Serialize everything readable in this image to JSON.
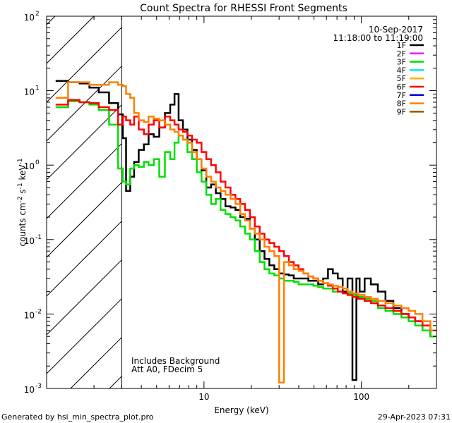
{
  "chart_data": {
    "type": "line",
    "title": "Count Spectra for RHESSI Front Segments",
    "xlabel": "Energy (keV)",
    "ylabel_parts": [
      "counts cm",
      "-2",
      " s",
      "-1",
      " keV",
      "-1"
    ],
    "xscale": "log",
    "yscale": "log",
    "xlim": [
      1.0,
      300.0
    ],
    "ylim": [
      0.001,
      100.0
    ],
    "x_ticks": [
      {
        "value": 10,
        "label": "10"
      },
      {
        "value": 100,
        "label": "100"
      }
    ],
    "y_ticks": [
      {
        "value": 0.001,
        "base": "10",
        "exp": "-3"
      },
      {
        "value": 0.01,
        "base": "10",
        "exp": "-2"
      },
      {
        "value": 0.1,
        "base": "10",
        "exp": "-1"
      },
      {
        "value": 1,
        "base": "10",
        "exp": "0"
      },
      {
        "value": 10,
        "base": "10",
        "exp": "1"
      },
      {
        "value": 100,
        "base": "10",
        "exp": "2"
      }
    ],
    "grid": false,
    "date": "10-Sep-2017",
    "time_range": "11:18:00 to 11:19:00",
    "annotations": [
      "Includes Background",
      "Att A0, FDecim 5"
    ],
    "shaded_region": {
      "x_min": 1.0,
      "x_max": 3.0,
      "pattern": "diagonal hatch"
    },
    "legend_position": "top-right",
    "legend": [
      {
        "label": "1F",
        "color": "#000000"
      },
      {
        "label": "2F",
        "color": "#ff00ff"
      },
      {
        "label": "3F",
        "color": "#00e000"
      },
      {
        "label": "4F",
        "color": "#00e5ff"
      },
      {
        "label": "5F",
        "color": "#ffb000"
      },
      {
        "label": "6F",
        "color": "#ff0000"
      },
      {
        "label": "7F",
        "color": "#0000e0"
      },
      {
        "label": "8F",
        "color": "#ff8000"
      },
      {
        "label": "9F",
        "color": "#806000"
      }
    ],
    "series": [
      {
        "color": "#000000",
        "width": 2.5,
        "points": [
          [
            1.25,
            13.5
          ],
          [
            1.5,
            13.0
          ],
          [
            1.75,
            12.5
          ],
          [
            2.0,
            11.0
          ],
          [
            2.3,
            9.5
          ],
          [
            2.7,
            6.8
          ],
          [
            3.0,
            4.8
          ],
          [
            3.1,
            2.3
          ],
          [
            3.3,
            0.45
          ],
          [
            3.5,
            0.7
          ],
          [
            3.7,
            1.1
          ],
          [
            4.0,
            1.6
          ],
          [
            4.3,
            1.9
          ],
          [
            4.6,
            2.6
          ],
          [
            5.0,
            2.4
          ],
          [
            5.4,
            3.2
          ],
          [
            5.9,
            5.0
          ],
          [
            6.3,
            6.5
          ],
          [
            6.7,
            9.0
          ],
          [
            7.1,
            4.0
          ],
          [
            7.6,
            3.0
          ],
          [
            8.1,
            2.2
          ],
          [
            8.7,
            1.6
          ],
          [
            9.3,
            1.2
          ],
          [
            10.0,
            0.85
          ],
          [
            10.7,
            0.5
          ],
          [
            11.5,
            0.55
          ],
          [
            12.3,
            0.42
          ],
          [
            13.2,
            0.35
          ],
          [
            14.2,
            0.28
          ],
          [
            15.3,
            0.27
          ],
          [
            16.4,
            0.25
          ],
          [
            17.6,
            0.2
          ],
          [
            18.9,
            0.19
          ],
          [
            20.3,
            0.14
          ],
          [
            21.8,
            0.1
          ],
          [
            23.4,
            0.07
          ],
          [
            25.1,
            0.055
          ],
          [
            27.0,
            0.045
          ],
          [
            29.0,
            0.04
          ],
          [
            31.1,
            0.035
          ],
          [
            33.4,
            0.034
          ],
          [
            35.9,
            0.033
          ],
          [
            38.5,
            0.03
          ],
          [
            41.4,
            0.03
          ],
          [
            44.4,
            0.03
          ],
          [
            47.7,
            0.028
          ],
          [
            51.3,
            0.028
          ],
          [
            55.1,
            0.025
          ],
          [
            59.2,
            0.03
          ],
          [
            63.6,
            0.04
          ],
          [
            68.3,
            0.035
          ],
          [
            73.4,
            0.03
          ],
          [
            78.8,
            0.02
          ],
          [
            84.6,
            0.03
          ],
          [
            90.9,
            0.0013
          ],
          [
            95,
            0.03
          ],
          [
            100,
            0.02
          ],
          [
            110,
            0.03
          ],
          [
            120,
            0.025
          ],
          [
            135,
            0.02
          ],
          [
            150,
            0.015
          ],
          [
            170,
            0.012
          ],
          [
            190,
            0.01
          ],
          [
            210,
            0.009
          ],
          [
            230,
            0.008
          ],
          [
            260,
            0.006
          ],
          [
            290,
            0.005
          ]
        ]
      },
      {
        "color": "#00e000",
        "width": 2.5,
        "points": [
          [
            1.25,
            6.0
          ],
          [
            1.5,
            7.2
          ],
          [
            1.75,
            7.0
          ],
          [
            2.0,
            6.5
          ],
          [
            2.3,
            5.5
          ],
          [
            2.7,
            3.5
          ],
          [
            3.0,
            0.9
          ],
          [
            3.1,
            0.6
          ],
          [
            3.3,
            0.55
          ],
          [
            3.5,
            0.9
          ],
          [
            3.7,
            1.0
          ],
          [
            4.0,
            0.95
          ],
          [
            4.3,
            1.1
          ],
          [
            4.6,
            1.0
          ],
          [
            5.0,
            1.2
          ],
          [
            5.4,
            0.7
          ],
          [
            5.9,
            1.5
          ],
          [
            6.3,
            1.2
          ],
          [
            6.7,
            2.0
          ],
          [
            7.1,
            2.5
          ],
          [
            7.6,
            2.2
          ],
          [
            8.1,
            1.5
          ],
          [
            8.7,
            1.2
          ],
          [
            9.3,
            0.8
          ],
          [
            10.0,
            0.6
          ],
          [
            10.7,
            0.4
          ],
          [
            11.5,
            0.3
          ],
          [
            12.3,
            0.35
          ],
          [
            13.2,
            0.25
          ],
          [
            14.2,
            0.22
          ],
          [
            15.3,
            0.2
          ],
          [
            16.4,
            0.18
          ],
          [
            17.6,
            0.15
          ],
          [
            18.9,
            0.12
          ],
          [
            20.3,
            0.1
          ],
          [
            21.8,
            0.07
          ],
          [
            23.4,
            0.05
          ],
          [
            25.1,
            0.04
          ],
          [
            27.0,
            0.035
          ],
          [
            29.0,
            0.033
          ],
          [
            31.1,
            0.03
          ],
          [
            33.4,
            0.028
          ],
          [
            35.9,
            0.028
          ],
          [
            38.5,
            0.027
          ],
          [
            41.4,
            0.025
          ],
          [
            44.4,
            0.025
          ],
          [
            47.7,
            0.025
          ],
          [
            51.3,
            0.024
          ],
          [
            55.1,
            0.023
          ],
          [
            59.2,
            0.022
          ],
          [
            63.6,
            0.022
          ],
          [
            68.3,
            0.02
          ],
          [
            73.4,
            0.02
          ],
          [
            78.8,
            0.019
          ],
          [
            84.6,
            0.019
          ],
          [
            90.9,
            0.018
          ],
          [
            100,
            0.017
          ],
          [
            110,
            0.016
          ],
          [
            120,
            0.015
          ],
          [
            135,
            0.012
          ],
          [
            150,
            0.011
          ],
          [
            170,
            0.01
          ],
          [
            190,
            0.009
          ],
          [
            210,
            0.008
          ],
          [
            230,
            0.007
          ],
          [
            260,
            0.006
          ],
          [
            290,
            0.005
          ]
        ]
      },
      {
        "color": "#ff0000",
        "width": 2.5,
        "points": [
          [
            1.25,
            6.5
          ],
          [
            1.5,
            7.5
          ],
          [
            1.75,
            7.0
          ],
          [
            2.0,
            6.8
          ],
          [
            2.3,
            6.0
          ],
          [
            2.7,
            5.5
          ],
          [
            3.0,
            3.5
          ],
          [
            3.1,
            4.5
          ],
          [
            3.3,
            4.0
          ],
          [
            3.5,
            3.5
          ],
          [
            3.7,
            4.5
          ],
          [
            4.0,
            3.0
          ],
          [
            4.3,
            2.6
          ],
          [
            4.6,
            3.5
          ],
          [
            5.0,
            4.0
          ],
          [
            5.4,
            3.2
          ],
          [
            5.9,
            4.5
          ],
          [
            6.3,
            4.0
          ],
          [
            6.7,
            3.5
          ],
          [
            7.1,
            3.0
          ],
          [
            7.6,
            2.8
          ],
          [
            8.1,
            2.5
          ],
          [
            8.7,
            2.2
          ],
          [
            9.3,
            2.0
          ],
          [
            10.0,
            1.5
          ],
          [
            10.7,
            1.2
          ],
          [
            11.5,
            1.0
          ],
          [
            12.3,
            0.8
          ],
          [
            13.2,
            0.6
          ],
          [
            14.2,
            0.5
          ],
          [
            15.3,
            0.4
          ],
          [
            16.4,
            0.35
          ],
          [
            17.6,
            0.3
          ],
          [
            18.9,
            0.25
          ],
          [
            20.3,
            0.2
          ],
          [
            21.8,
            0.15
          ],
          [
            23.4,
            0.12
          ],
          [
            25.1,
            0.1
          ],
          [
            27.0,
            0.09
          ],
          [
            29.0,
            0.08
          ],
          [
            31.1,
            0.07
          ],
          [
            33.4,
            0.06
          ],
          [
            35.9,
            0.05
          ],
          [
            38.5,
            0.045
          ],
          [
            41.4,
            0.04
          ],
          [
            44.4,
            0.035
          ],
          [
            47.7,
            0.032
          ],
          [
            51.3,
            0.03
          ],
          [
            55.1,
            0.028
          ],
          [
            59.2,
            0.026
          ],
          [
            63.6,
            0.024
          ],
          [
            68.3,
            0.022
          ],
          [
            73.4,
            0.02
          ],
          [
            78.8,
            0.019
          ],
          [
            84.6,
            0.018
          ],
          [
            90.9,
            0.017
          ],
          [
            100,
            0.016
          ],
          [
            110,
            0.015
          ],
          [
            120,
            0.014
          ],
          [
            135,
            0.013
          ],
          [
            150,
            0.012
          ],
          [
            170,
            0.011
          ],
          [
            190,
            0.01
          ],
          [
            210,
            0.009
          ],
          [
            230,
            0.008
          ],
          [
            260,
            0.007
          ],
          [
            290,
            0.006
          ]
        ]
      },
      {
        "color": "#ff8000",
        "width": 2.5,
        "points": [
          [
            1.25,
            8.0
          ],
          [
            1.5,
            13.0
          ],
          [
            1.75,
            13.0
          ],
          [
            2.0,
            12.0
          ],
          [
            2.3,
            12.0
          ],
          [
            2.7,
            13.0
          ],
          [
            3.0,
            12.0
          ],
          [
            3.1,
            11.5
          ],
          [
            3.3,
            9.0
          ],
          [
            3.5,
            8.0
          ],
          [
            3.7,
            5.0
          ],
          [
            4.0,
            4.0
          ],
          [
            4.3,
            3.8
          ],
          [
            4.6,
            4.5
          ],
          [
            5.0,
            4.2
          ],
          [
            5.4,
            4.0
          ],
          [
            5.9,
            3.5
          ],
          [
            6.3,
            3.0
          ],
          [
            6.7,
            2.8
          ],
          [
            7.1,
            2.5
          ],
          [
            7.6,
            2.2
          ],
          [
            8.1,
            2.0
          ],
          [
            8.7,
            1.5
          ],
          [
            9.3,
            1.2
          ],
          [
            10.0,
            0.9
          ],
          [
            10.7,
            0.7
          ],
          [
            11.5,
            0.6
          ],
          [
            12.3,
            0.5
          ],
          [
            13.2,
            0.45
          ],
          [
            14.2,
            0.4
          ],
          [
            15.3,
            0.35
          ],
          [
            16.4,
            0.3
          ],
          [
            17.6,
            0.22
          ],
          [
            18.9,
            0.18
          ],
          [
            20.3,
            0.14
          ],
          [
            21.8,
            0.12
          ],
          [
            23.4,
            0.1
          ],
          [
            25.1,
            0.08
          ],
          [
            27.0,
            0.07
          ],
          [
            29.0,
            0.06
          ],
          [
            31.1,
            0.0012
          ],
          [
            33.4,
            0.05
          ],
          [
            35.9,
            0.045
          ],
          [
            38.5,
            0.04
          ],
          [
            41.4,
            0.038
          ],
          [
            44.4,
            0.035
          ],
          [
            47.7,
            0.032
          ],
          [
            51.3,
            0.03
          ],
          [
            55.1,
            0.028
          ],
          [
            59.2,
            0.026
          ],
          [
            63.6,
            0.025
          ],
          [
            68.3,
            0.024
          ],
          [
            73.4,
            0.023
          ],
          [
            78.8,
            0.022
          ],
          [
            84.6,
            0.02
          ],
          [
            90.9,
            0.019
          ],
          [
            100,
            0.018
          ],
          [
            110,
            0.017
          ],
          [
            120,
            0.016
          ],
          [
            135,
            0.015
          ],
          [
            150,
            0.014
          ],
          [
            170,
            0.013
          ],
          [
            190,
            0.012
          ],
          [
            210,
            0.011
          ],
          [
            230,
            0.01
          ],
          [
            260,
            0.008
          ],
          [
            290,
            0.006
          ]
        ]
      }
    ]
  },
  "footer": {
    "generated_by": "Generated by hsi_min_spectra_plot.pro",
    "timestamp": "29-Apr-2023 07:31"
  }
}
